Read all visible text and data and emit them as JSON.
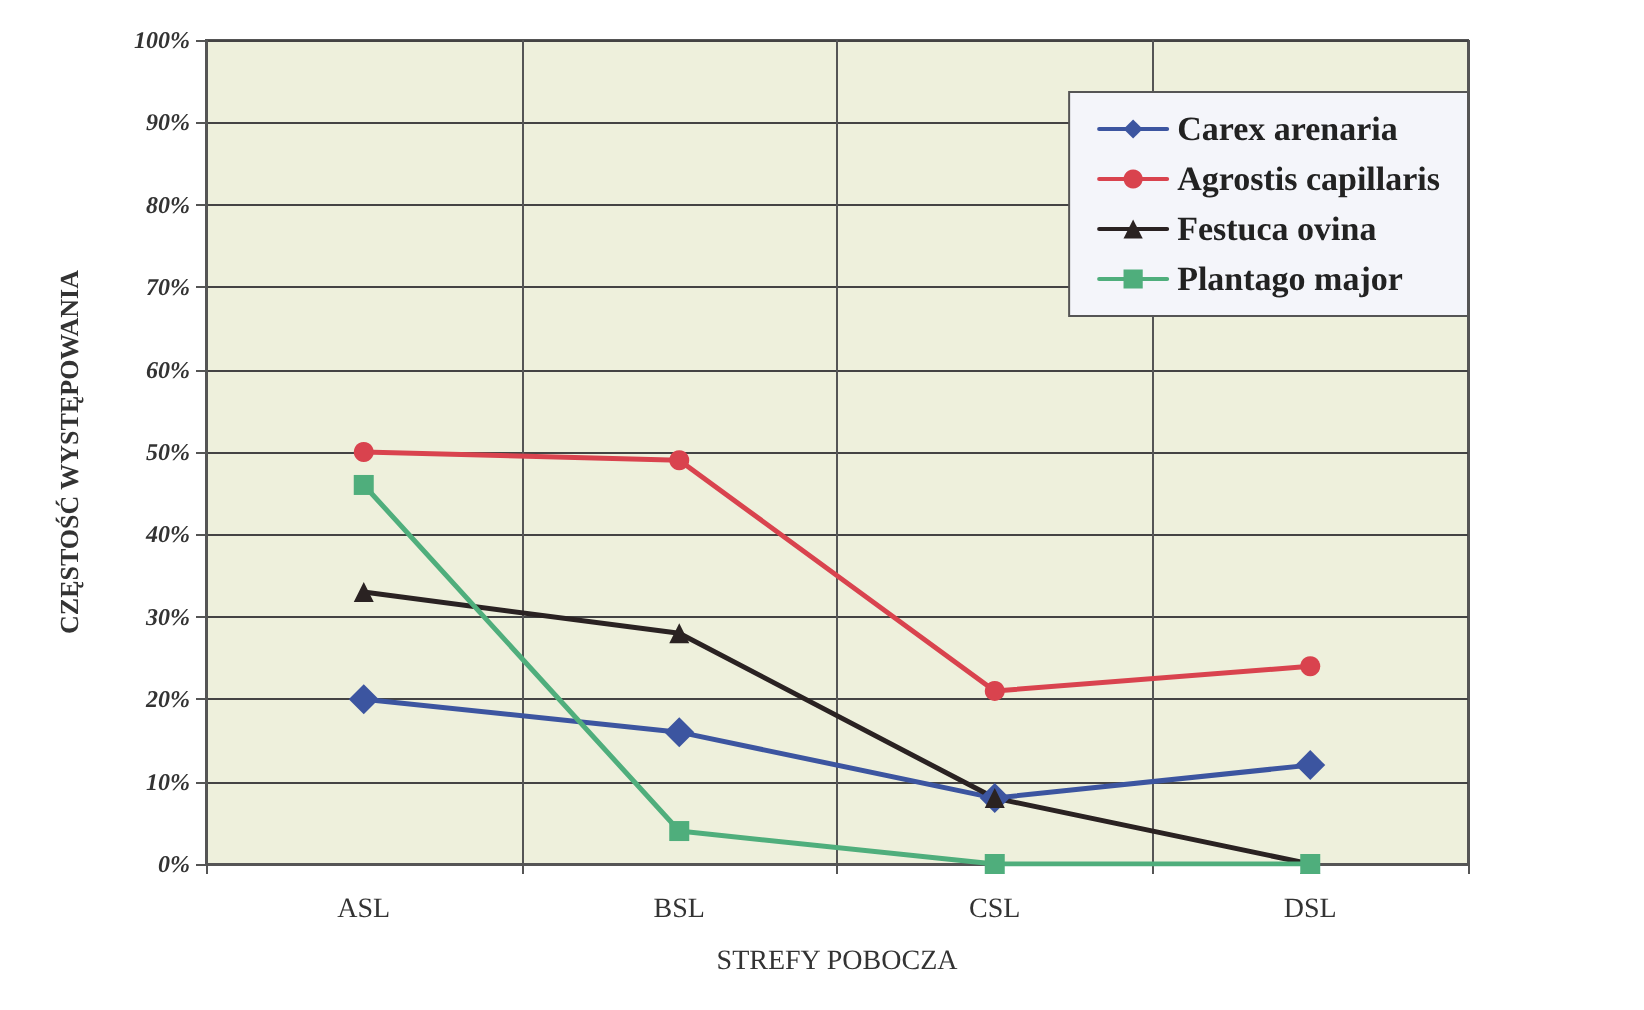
{
  "chart_data": {
    "type": "line",
    "xlabel": "STREFY POBOCZA",
    "ylabel": "CZĘSTOŚĆ WYSTĘPOWANIA",
    "categories": [
      "ASL",
      "BSL",
      "CSL",
      "DSL"
    ],
    "series": [
      {
        "name": "Carex arenaria",
        "color": "#3c55a0",
        "marker": "diamond",
        "values": [
          20,
          16,
          8,
          12
        ]
      },
      {
        "name": "Agrostis capillaris",
        "color": "#d9434e",
        "marker": "circle",
        "values": [
          50,
          49,
          21,
          24
        ]
      },
      {
        "name": "Festuca ovina",
        "color": "#2a2222",
        "marker": "triangle",
        "values": [
          33,
          28,
          8,
          0
        ]
      },
      {
        "name": "Plantago major",
        "color": "#4fae7c",
        "marker": "square",
        "values": [
          46,
          4,
          0,
          0
        ]
      }
    ],
    "ylim": [
      0,
      100
    ],
    "yticks": [
      {
        "value": 0,
        "label": "0%"
      },
      {
        "value": 10,
        "label": "10%"
      },
      {
        "value": 20,
        "label": "20%"
      },
      {
        "value": 30,
        "label": "30%"
      },
      {
        "value": 40,
        "label": "40%"
      },
      {
        "value": 50,
        "label": "50%"
      },
      {
        "value": 60,
        "label": "60%"
      },
      {
        "value": 70,
        "label": "70%"
      },
      {
        "value": 80,
        "label": "80%"
      },
      {
        "value": 90,
        "label": "90%"
      },
      {
        "value": 100,
        "label": "100%"
      }
    ],
    "grid": true,
    "legend": "top right"
  }
}
